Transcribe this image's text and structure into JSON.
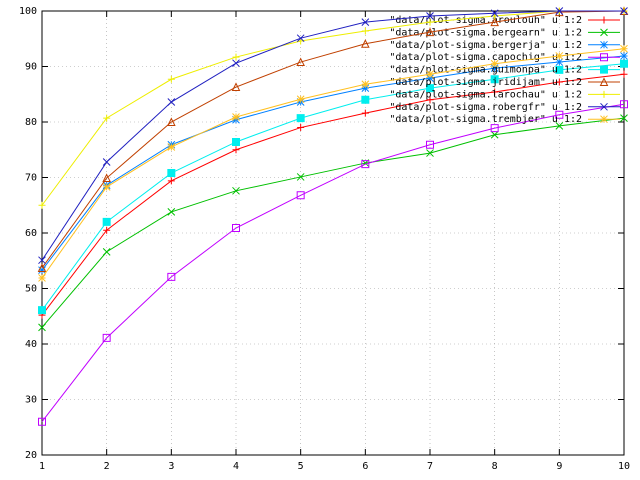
{
  "chart_data": {
    "type": "line",
    "x": [
      1,
      2,
      3,
      4,
      5,
      6,
      7,
      8,
      9,
      10
    ],
    "xlim": [
      1,
      10
    ],
    "xticks": [
      1,
      2,
      3,
      4,
      5,
      6,
      7,
      8,
      9,
      10
    ],
    "ylim": [
      20,
      100
    ],
    "yticks": [
      20,
      30,
      40,
      50,
      60,
      70,
      80,
      90,
      100
    ],
    "grid": true,
    "legend": "top-right",
    "series": [
      {
        "name": "\"data/plot-sigma.aroulouh\" u 1:2",
        "color": "#ff0000",
        "values": [
          45.2,
          60.5,
          69.4,
          75,
          79,
          81.6,
          84,
          85.4,
          87.2,
          88.6
        ]
      },
      {
        "name": "\"data/plot-sigma.bergearn\" u 1:2",
        "color": "#00c000",
        "values": [
          43,
          56.6,
          63.8,
          67.6,
          70.1,
          72.6,
          74.4,
          77.7,
          79.3,
          80.7
        ]
      },
      {
        "name": "\"data/plot-sigma.bergerja\" u 1:2",
        "color": "#0080ff",
        "values": [
          53.3,
          68.6,
          75.9,
          80.4,
          83.6,
          86.1,
          87.9,
          89.7,
          90.8,
          91.9
        ]
      },
      {
        "name": "\"data/plot-sigma.capochig\" u 1:2",
        "color": "#c000ff",
        "values": [
          26,
          41.1,
          52.1,
          60.9,
          66.8,
          72.4,
          75.9,
          78.9,
          81.3,
          83.2
        ]
      },
      {
        "name": "\"data/plot-sigma.guimonpa\" u 1:2",
        "color": "#00eeee",
        "values": [
          46.1,
          62,
          70.8,
          76.4,
          80.7,
          84,
          86.1,
          87.7,
          89.4,
          90.5
        ]
      },
      {
        "name": "\"data/plot-sigma.jridijam\" u 1:2",
        "color": "#c04000",
        "values": [
          53.7,
          69.9,
          80,
          86.3,
          90.8,
          94.1,
          96.2,
          98,
          99.8,
          100
        ]
      },
      {
        "name": "\"data/plot-sigma.larochau\" u 1:2",
        "color": "#eeee00",
        "values": [
          65,
          80.7,
          87.7,
          91.7,
          94.6,
          96.4,
          98,
          99.1,
          100,
          100
        ]
      },
      {
        "name": "\"data/plot-sigma.robergfr\" u 1:2",
        "color": "#2020c0",
        "values": [
          55.1,
          72.8,
          83.6,
          90.6,
          95.1,
          98,
          99.1,
          99.6,
          100,
          100
        ]
      },
      {
        "name": "\"data/plot-sigma.trembjer\" u 1:2",
        "color": "#ffc020",
        "values": [
          51.9,
          68.3,
          75.5,
          80.9,
          84.1,
          86.8,
          88.6,
          90.5,
          91.9,
          93.2
        ]
      }
    ]
  }
}
